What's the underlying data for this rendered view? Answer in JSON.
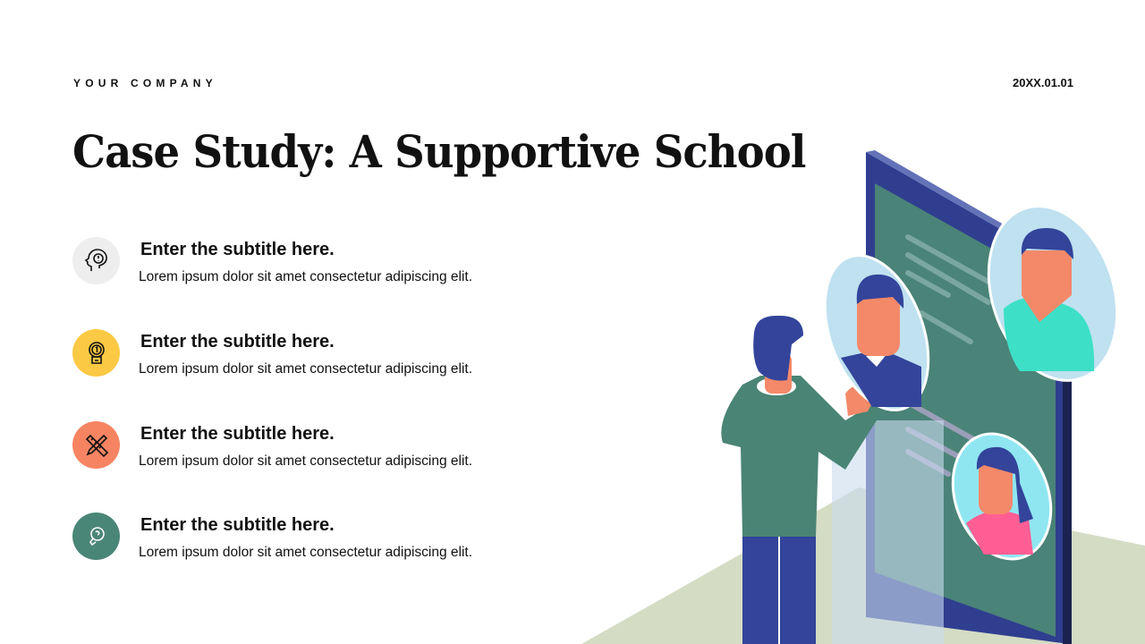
{
  "header": {
    "company": "YOUR COMPANY",
    "date": "20XX.01.01"
  },
  "title": "Case Study: A Supportive School",
  "items": [
    {
      "icon": "head-mind-icon",
      "color": "#eeeeee",
      "subtitle": "Enter the subtitle here.",
      "text": "Lorem ipsum dolor sit amet consectetur adipiscing elit."
    },
    {
      "icon": "medal-trophy-icon",
      "color": "#fcc945",
      "subtitle": "Enter the subtitle here.",
      "text": "Lorem ipsum dolor sit amet consectetur adipiscing elit."
    },
    {
      "icon": "pencil-ruler-icon",
      "color": "#f68462",
      "subtitle": "Enter the subtitle here.",
      "text": "Lorem ipsum dolor sit amet consectetur adipiscing elit."
    },
    {
      "icon": "lightbulb-icon",
      "color": "#4a8677",
      "subtitle": "Enter the subtitle here.",
      "text": "Lorem ipsum dolor sit amet consectetur adipiscing elit."
    }
  ]
}
